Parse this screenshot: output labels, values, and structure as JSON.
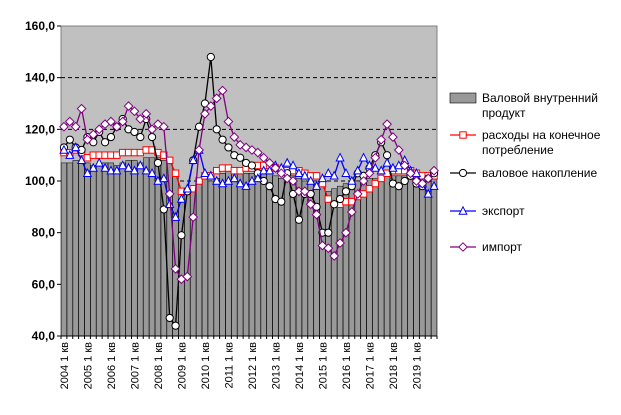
{
  "chart_data": {
    "type": "bar+line",
    "ylim": [
      40,
      160
    ],
    "y_ticks": [
      "40,0",
      "60,0",
      "80,0",
      "100,0",
      "120,0",
      "140,0",
      "160,0"
    ],
    "x_tick_labels": [
      "2004 1 кв",
      "2005 1 кв",
      "2006 1 кв",
      "2007 1 кв",
      "2008 1 кв",
      "2009 1 кв",
      "2010 1 кв",
      "2011 1 кв",
      "2012 1 кв",
      "2013 1 кв",
      "2014 1 кв",
      "2015 1 кв",
      "2016 1 кв",
      "2017 1 кв",
      "2018 1 кв",
      "2019 1 кв"
    ],
    "x_label_every": 4,
    "grid": "horizontal-dashed",
    "legend_position": "right",
    "colors": {
      "plot_bg": "#c0c0c0",
      "bar": "#999999",
      "consumption": "#ff0000",
      "investment": "#000000",
      "export": "#0000ff",
      "import": "#800080"
    },
    "series": [
      {
        "name": "Валовой внутренний продукт",
        "kind": "bar",
        "values": [
          107,
          107,
          108,
          107,
          107,
          106,
          106,
          107,
          107,
          106,
          107,
          108,
          108,
          107,
          109,
          109,
          109,
          108,
          107,
          102,
          93,
          95,
          97,
          100,
          102,
          100,
          101,
          103,
          104,
          104,
          104,
          103,
          103,
          104,
          103,
          103,
          102,
          101,
          101,
          102,
          101,
          100,
          100,
          100,
          98,
          96,
          97,
          98,
          99,
          99,
          100,
          101,
          101,
          101,
          102,
          102,
          102,
          102,
          102,
          102,
          101,
          100,
          101,
          102
        ]
      },
      {
        "name": "расходы на конечное потребление",
        "kind": "line",
        "marker": "square",
        "values": [
          111,
          111,
          112,
          111,
          109,
          110,
          110,
          110,
          110,
          110,
          111,
          111,
          111,
          111,
          112,
          112,
          111,
          110,
          108,
          103,
          96,
          96,
          97,
          100,
          102,
          102,
          104,
          105,
          105,
          104,
          104,
          105,
          105,
          106,
          106,
          106,
          105,
          104,
          104,
          104,
          104,
          103,
          102,
          102,
          99,
          93,
          91,
          91,
          92,
          92,
          94,
          95,
          97,
          99,
          101,
          103,
          104,
          104,
          104,
          104,
          103,
          102,
          102,
          102
        ]
      },
      {
        "name": "валовое накопление",
        "kind": "line",
        "marker": "circle",
        "values": [
          113,
          116,
          113,
          112,
          117,
          115,
          119,
          115,
          117,
          121,
          124,
          120,
          119,
          117,
          124,
          117,
          107,
          89,
          47,
          44,
          79,
          96,
          108,
          121,
          130,
          148,
          120,
          116,
          113,
          110,
          109,
          107,
          106,
          103,
          100,
          98,
          93,
          92,
          103,
          95,
          85,
          95,
          95,
          90,
          80,
          80,
          91,
          93,
          96,
          98,
          103,
          102,
          105,
          110,
          115,
          110,
          99,
          98,
          100,
          102,
          99,
          98,
          101,
          103
        ]
      },
      {
        "name": "экспорт",
        "kind": "line",
        "marker": "triangle",
        "values": [
          112,
          110,
          113,
          108,
          103,
          105,
          107,
          105,
          104,
          104,
          106,
          105,
          104,
          106,
          104,
          103,
          100,
          101,
          91,
          86,
          93,
          97,
          108,
          112,
          103,
          102,
          100,
          99,
          100,
          101,
          99,
          98,
          100,
          101,
          104,
          104,
          106,
          105,
          107,
          106,
          103,
          102,
          100,
          98,
          101,
          103,
          102,
          109,
          103,
          100,
          104,
          109,
          106,
          105,
          104,
          107,
          105,
          106,
          108,
          104,
          103,
          99,
          95,
          98
        ]
      },
      {
        "name": "импорт",
        "kind": "line",
        "marker": "diamond",
        "values": [
          121,
          123,
          121,
          128,
          116,
          118,
          120,
          122,
          123,
          121,
          123,
          129,
          127,
          124,
          126,
          120,
          122,
          121,
          95,
          66,
          62,
          63,
          86,
          112,
          126,
          129,
          132,
          135,
          123,
          117,
          114,
          113,
          112,
          111,
          109,
          107,
          105,
          103,
          101,
          100,
          96,
          96,
          91,
          87,
          75,
          74,
          71,
          76,
          80,
          88,
          95,
          100,
          103,
          109,
          116,
          122,
          117,
          112,
          106,
          103,
          100,
          99,
          101,
          104
        ]
      }
    ],
    "legend": [
      {
        "lines": [
          "Валовой внутренний",
          "продукт"
        ],
        "key": "bar"
      },
      {
        "lines": [
          "расходы на конечное",
          "потребление"
        ],
        "key": "consumption"
      },
      {
        "lines": [
          "валовое накопление"
        ],
        "key": "investment"
      },
      {
        "lines": [
          "экспорт"
        ],
        "key": "export"
      },
      {
        "lines": [
          "импорт"
        ],
        "key": "import"
      }
    ]
  }
}
